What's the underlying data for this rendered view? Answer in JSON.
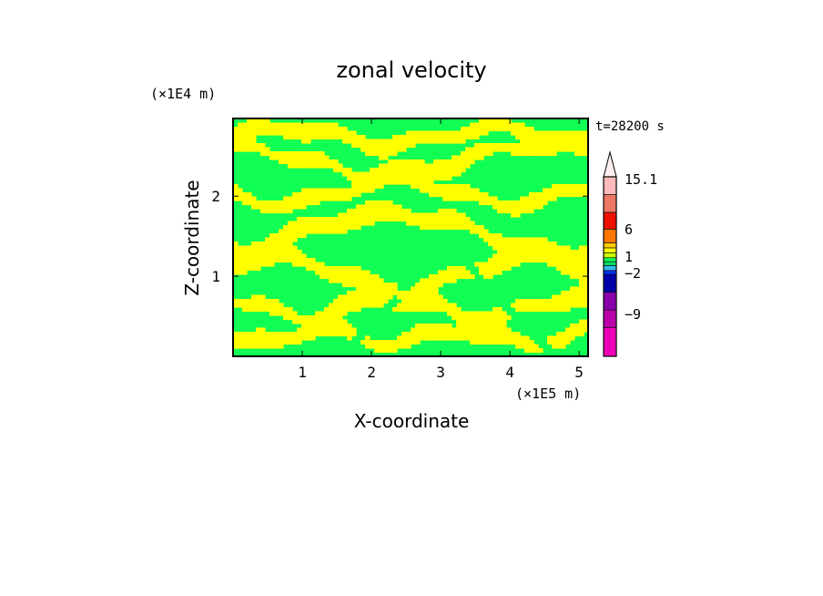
{
  "chart_data": {
    "type": "heatmap",
    "title": "zonal velocity",
    "xlabel": "X-coordinate",
    "ylabel": "Z-coordinate",
    "x_unit": "(×1E5 m)",
    "y_unit": "(×1E4 m)",
    "time_label": "t=28200 s",
    "xlim": [
      0,
      5.13
    ],
    "ylim": [
      0,
      2.97
    ],
    "x_ticks": [
      1,
      2,
      3,
      4,
      5
    ],
    "y_ticks": [
      1,
      2
    ],
    "x_tick_labels": [
      "1",
      "2",
      "3",
      "4",
      "5"
    ],
    "y_tick_labels": [
      "1",
      "2"
    ],
    "grid": false,
    "colorbar": {
      "labels": [
        {
          "value": 15.1,
          "text": "15.1"
        },
        {
          "value": 6,
          "text": "6"
        },
        {
          "value": 1,
          "text": "1"
        },
        {
          "value": -2,
          "text": "−2"
        },
        {
          "value": -9,
          "text": "−9"
        }
      ],
      "bins": [
        {
          "color": "#ee00bb",
          "lo": -15,
          "hi": -12
        },
        {
          "color": "#bb00aa",
          "lo": -12,
          "hi": -9
        },
        {
          "color": "#8800aa",
          "lo": -9,
          "hi": -6
        },
        {
          "color": "#0000aa",
          "lo": -6,
          "hi": -4
        },
        {
          "color": "#0033ee",
          "lo": -4,
          "hi": -2
        },
        {
          "color": "#33bbee",
          "lo": -2,
          "hi": -1
        },
        {
          "color": "#00dd66",
          "lo": -1,
          "hi": 0
        },
        {
          "color": "#11ff55",
          "lo": 0,
          "hi": 0.5
        },
        {
          "color": "#ccff00",
          "lo": 0.5,
          "hi": 1
        },
        {
          "color": "#ffff00",
          "lo": 1,
          "hi": 2
        },
        {
          "color": "#ffcc00",
          "lo": 2,
          "hi": 4
        },
        {
          "color": "#ff7700",
          "lo": 4,
          "hi": 6
        },
        {
          "color": "#ee1100",
          "lo": 6,
          "hi": 9
        },
        {
          "color": "#ee7766",
          "lo": 9,
          "hi": 12
        },
        {
          "color": "#ffbbbb",
          "lo": 12,
          "hi": 15.1
        },
        {
          "color": "#ffeeee",
          "lo": 15.1,
          "hi": 20
        }
      ]
    },
    "field": {
      "description_colors": {
        "positive": "#ffff00",
        "near_zero": "#11ff55"
      },
      "bands": [
        {
          "z": 2.75,
          "amp": 0.1,
          "k": 2.1,
          "w": 0.1
        },
        {
          "z": 2.45,
          "amp": 0.18,
          "k": 1.4,
          "w": 0.12
        },
        {
          "z": 2.05,
          "amp": 0.15,
          "k": 1.9,
          "w": 0.09
        },
        {
          "z": 1.55,
          "amp": 0.25,
          "k": 1.2,
          "w": 0.14
        },
        {
          "z": 1.05,
          "amp": 0.2,
          "k": 1.7,
          "w": 0.11
        },
        {
          "z": 0.62,
          "amp": 0.12,
          "k": 2.4,
          "w": 0.12
        },
        {
          "z": 0.25,
          "amp": 0.08,
          "k": 3.1,
          "w": 0.1
        }
      ]
    }
  }
}
